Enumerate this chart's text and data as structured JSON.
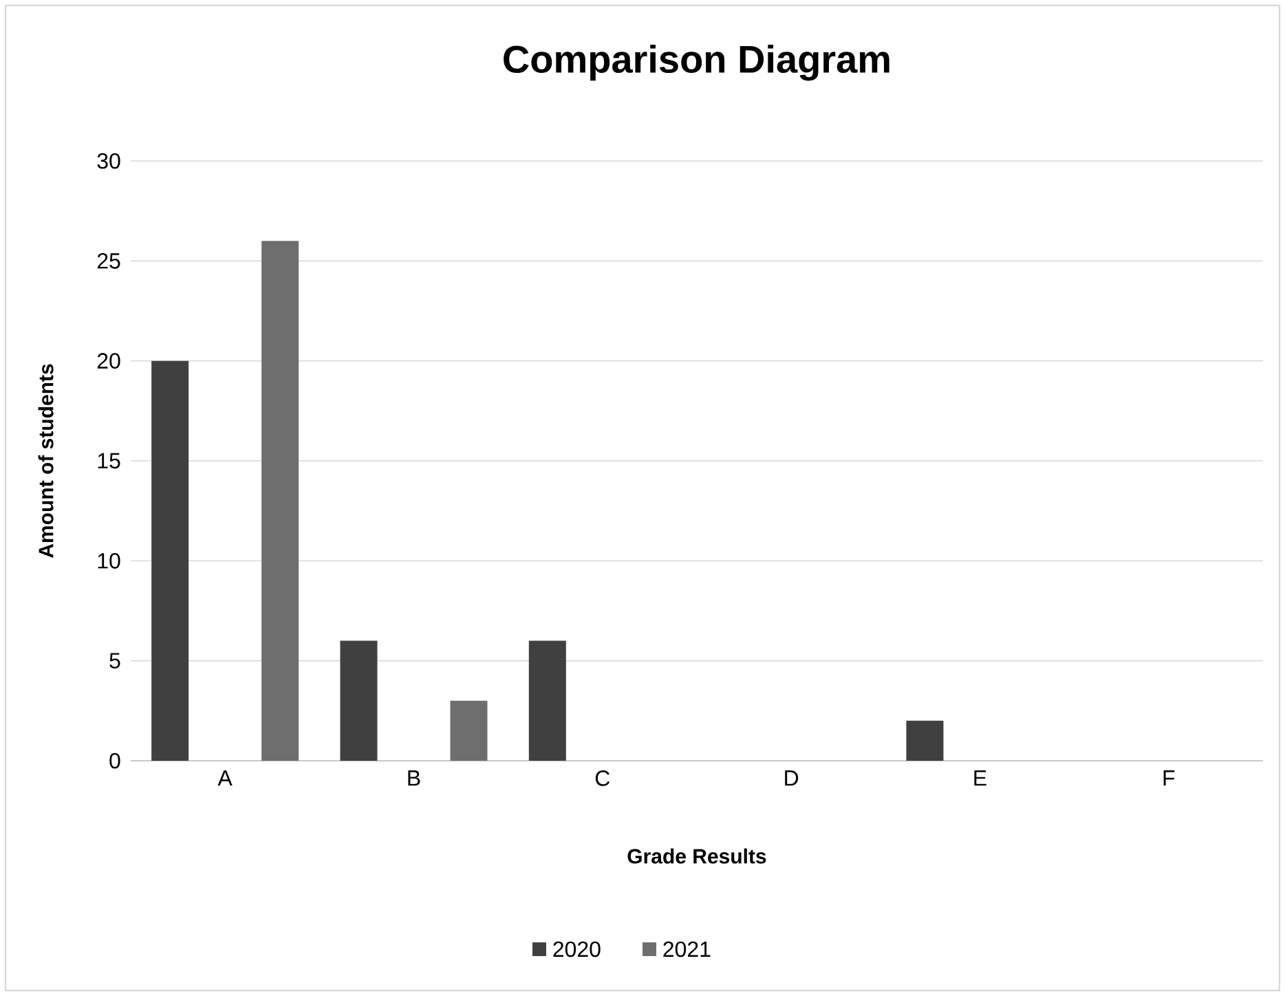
{
  "chart_data": {
    "type": "bar",
    "title": "Comparison  Diagram",
    "xlabel": "Grade Results",
    "ylabel": "Amount of students",
    "categories": [
      "A",
      "B",
      "C",
      "D",
      "E",
      "F"
    ],
    "series": [
      {
        "name": "2020",
        "color": "#404040",
        "values": [
          20,
          6,
          6,
          0,
          2,
          0
        ]
      },
      {
        "name": "2021",
        "color": "#6e6e6e",
        "values": [
          26,
          3,
          0,
          0,
          0,
          0
        ]
      }
    ],
    "ylim": [
      0,
      30
    ],
    "yticks": [
      0,
      5,
      10,
      15,
      20,
      25,
      30
    ],
    "grid": "y",
    "legend": "bottom"
  }
}
